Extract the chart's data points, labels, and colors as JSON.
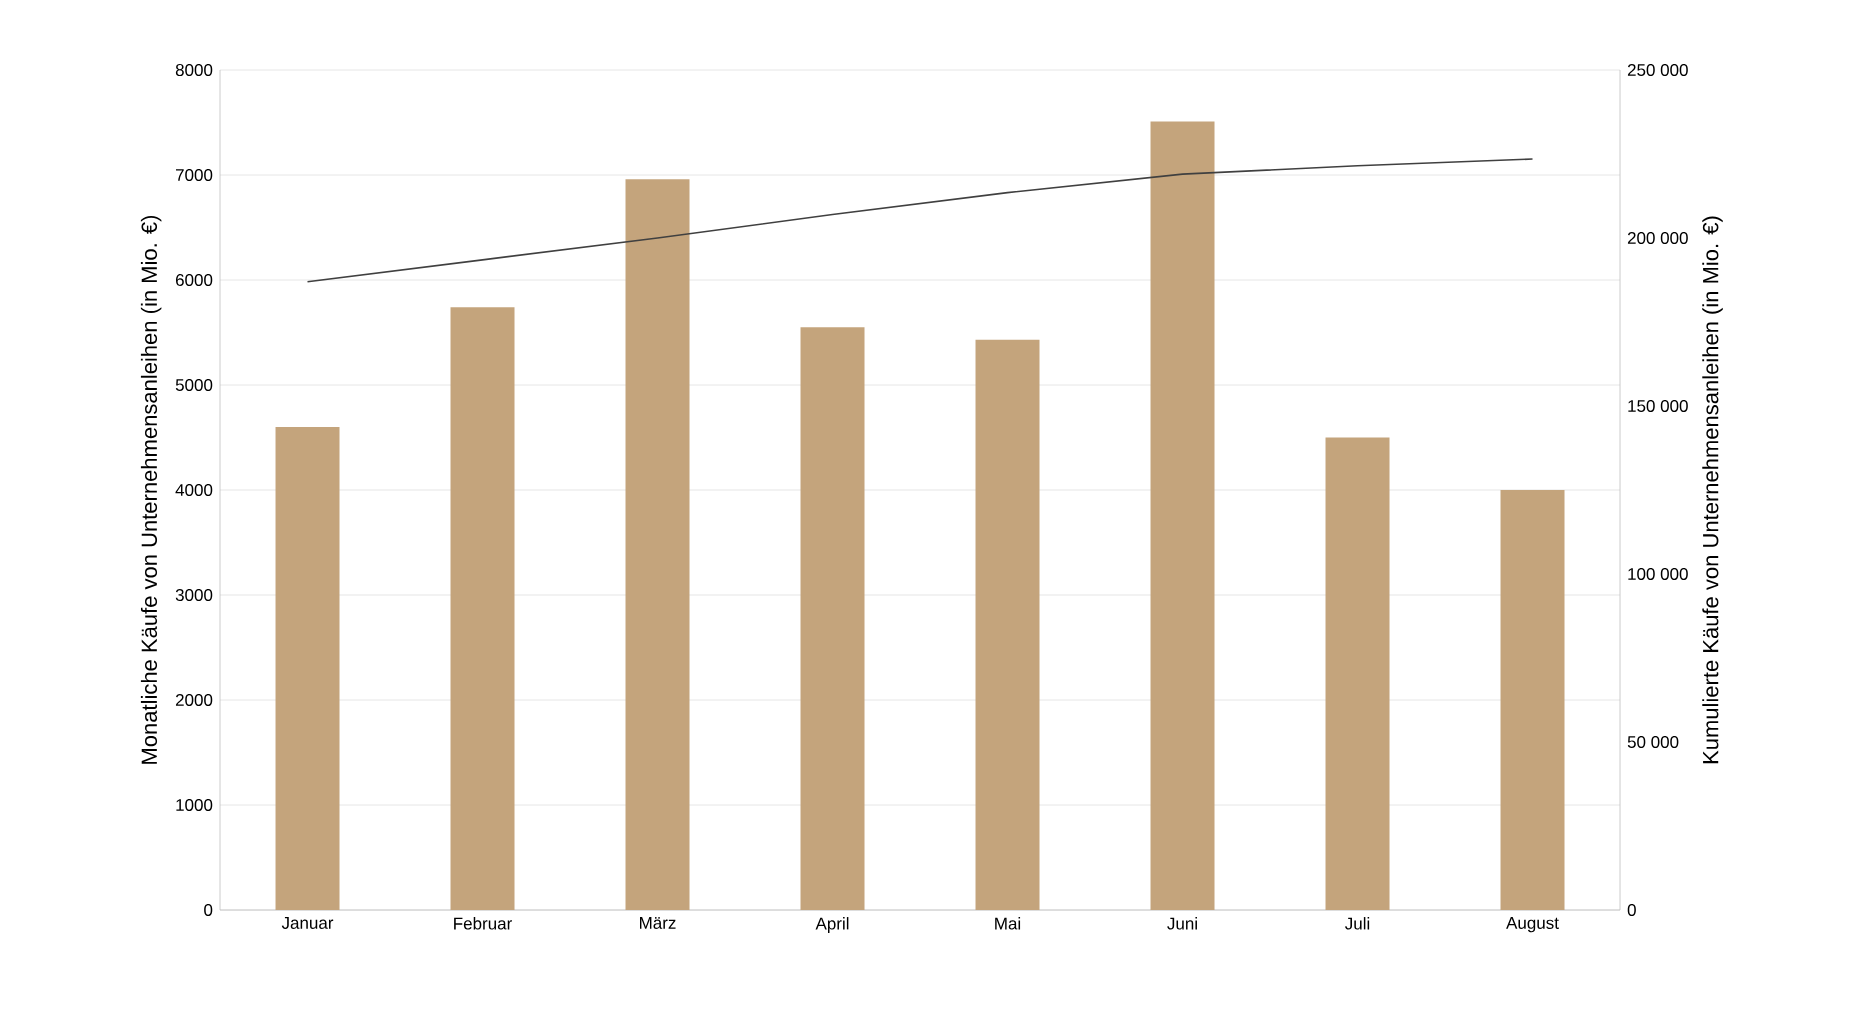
{
  "chart_data": {
    "type": "bar",
    "categories": [
      "Januar",
      "Februar",
      "März",
      "April",
      "Mai",
      "Juni",
      "Juli",
      "August"
    ],
    "series": [
      {
        "color": "#c4a47c",
        "values": [
          4600,
          5740,
          6960,
          5550,
          5430,
          7510,
          4500,
          4000
        ]
      },
      {
        "type": "line",
        "axis": "y2",
        "color": "#404040",
        "values": [
          187000,
          193500,
          200000,
          207000,
          213500,
          219000,
          221500,
          223500
        ]
      }
    ],
    "ylabel": "Monatliche Käufe von Unternehmensanleihen (in Mio. €)",
    "y2label": "Kumulierte Käufe von Unternehmensanleihen (in Mio. €)",
    "ylim": [
      0,
      8000
    ],
    "yticks": [
      0,
      1000,
      2000,
      3000,
      4000,
      5000,
      6000,
      7000,
      8000
    ],
    "y2lim": [
      0,
      250000
    ],
    "y2ticks": [
      0,
      {
        "value": 50000,
        "label": "50 000"
      },
      {
        "value": 100000,
        "label": "100 000"
      },
      {
        "value": 150000,
        "label": "150 000"
      },
      {
        "value": 200000,
        "label": "200 000"
      },
      {
        "value": 250000,
        "label": "250 000"
      }
    ],
    "grid": "y",
    "legend": false
  }
}
